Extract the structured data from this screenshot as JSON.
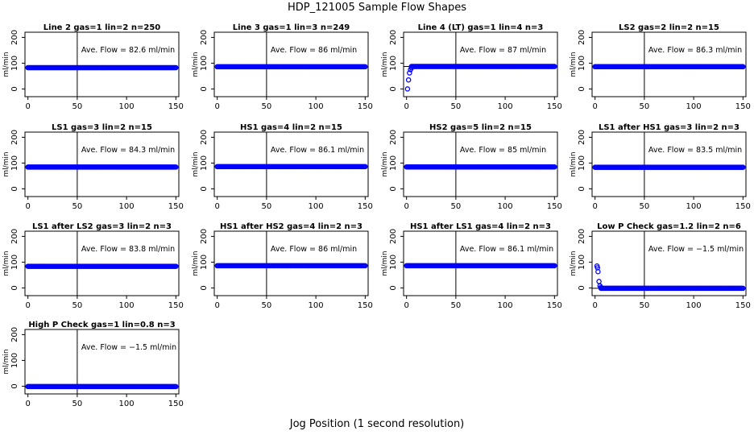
{
  "page": {
    "title": "HDP_121005  Sample Flow Shapes",
    "xlabel": "Jog Position (1 second resolution)"
  },
  "style": {
    "point_color": "#0000ff",
    "line_color": "#000000"
  },
  "chart_data": [
    {
      "type": "scatter",
      "title": "Line 2 gas=1 lin=2 n=250",
      "annotation": "Ave. Flow =  82.6  ml/min",
      "ylabel": "ml/min",
      "xlim": [
        -3,
        153
      ],
      "ylim": [
        -30,
        220
      ],
      "xticks": [
        0,
        50,
        100,
        150
      ],
      "yticks": [
        0,
        100,
        200
      ],
      "ref_hline": 82.6,
      "ref_vline": 50,
      "shape": {
        "kind": "flat",
        "level": 82.6,
        "x_start": 0,
        "x_end": 150
      }
    },
    {
      "type": "scatter",
      "title": "Line 3 gas=1 lin=3 n=249",
      "annotation": "Ave. Flow =  86  ml/min",
      "ylabel": "ml/min",
      "xlim": [
        -3,
        153
      ],
      "ylim": [
        -30,
        220
      ],
      "xticks": [
        0,
        50,
        100,
        150
      ],
      "yticks": [
        0,
        100,
        200
      ],
      "ref_hline": 86,
      "ref_vline": 50,
      "shape": {
        "kind": "flat",
        "level": 86,
        "x_start": 0,
        "x_end": 150
      }
    },
    {
      "type": "scatter",
      "title": "Line 4 (LT) gas=1 lin=4 n=3",
      "annotation": "Ave. Flow =  87  ml/min",
      "ylabel": "ml/min",
      "xlim": [
        -3,
        153
      ],
      "ylim": [
        -30,
        220
      ],
      "xticks": [
        0,
        50,
        100,
        150
      ],
      "yticks": [
        0,
        100,
        200
      ],
      "ref_hline": 87,
      "ref_vline": 50,
      "shape": {
        "kind": "flat",
        "level": 87,
        "x_start": 5,
        "x_end": 150
      },
      "extra_points": [
        [
          1,
          0
        ],
        [
          2,
          35
        ],
        [
          3,
          62
        ],
        [
          4,
          75
        ],
        [
          5,
          82
        ]
      ]
    },
    {
      "type": "scatter",
      "title": "LS2 gas=2 lin=2 n=15",
      "annotation": "Ave. Flow =  86.3  ml/min",
      "ylabel": "ml/min",
      "xlim": [
        -3,
        153
      ],
      "ylim": [
        -30,
        220
      ],
      "xticks": [
        0,
        50,
        100,
        150
      ],
      "yticks": [
        0,
        100,
        200
      ],
      "ref_hline": 86.3,
      "ref_vline": 50,
      "shape": {
        "kind": "flat",
        "level": 86.3,
        "x_start": 0,
        "x_end": 150
      }
    },
    {
      "type": "scatter",
      "title": "LS1 gas=3 lin=2 n=15",
      "annotation": "Ave. Flow =  84.3  ml/min",
      "ylabel": "ml/min",
      "xlim": [
        -3,
        153
      ],
      "ylim": [
        -30,
        220
      ],
      "xticks": [
        0,
        50,
        100,
        150
      ],
      "yticks": [
        0,
        100,
        200
      ],
      "ref_hline": 84.3,
      "ref_vline": 50,
      "shape": {
        "kind": "flat",
        "level": 84.3,
        "x_start": 0,
        "x_end": 150
      }
    },
    {
      "type": "scatter",
      "title": "HS1 gas=4 lin=2 n=15",
      "annotation": "Ave. Flow =  86.1  ml/min",
      "ylabel": "ml/min",
      "xlim": [
        -3,
        153
      ],
      "ylim": [
        -30,
        220
      ],
      "xticks": [
        0,
        50,
        100,
        150
      ],
      "yticks": [
        0,
        100,
        200
      ],
      "ref_hline": 86.1,
      "ref_vline": 50,
      "shape": {
        "kind": "flat",
        "level": 86.1,
        "x_start": 0,
        "x_end": 150
      }
    },
    {
      "type": "scatter",
      "title": "HS2 gas=5 lin=2 n=15",
      "annotation": "Ave. Flow =  85  ml/min",
      "ylabel": "ml/min",
      "xlim": [
        -3,
        153
      ],
      "ylim": [
        -30,
        220
      ],
      "xticks": [
        0,
        50,
        100,
        150
      ],
      "yticks": [
        0,
        100,
        200
      ],
      "ref_hline": 85,
      "ref_vline": 50,
      "shape": {
        "kind": "flat",
        "level": 85,
        "x_start": 0,
        "x_end": 150
      }
    },
    {
      "type": "scatter",
      "title": "LS1 after HS1 gas=3 lin=2 n=3",
      "annotation": "Ave. Flow =  83.5  ml/min",
      "ylabel": "ml/min",
      "xlim": [
        -3,
        153
      ],
      "ylim": [
        -30,
        220
      ],
      "xticks": [
        0,
        50,
        100,
        150
      ],
      "yticks": [
        0,
        100,
        200
      ],
      "ref_hline": 83.5,
      "ref_vline": 50,
      "shape": {
        "kind": "flat",
        "level": 83.5,
        "x_start": 0,
        "x_end": 150
      }
    },
    {
      "type": "scatter",
      "title": "LS1 after LS2 gas=3 lin=2 n=3",
      "annotation": "Ave. Flow =  83.8  ml/min",
      "ylabel": "ml/min",
      "xlim": [
        -3,
        153
      ],
      "ylim": [
        -30,
        220
      ],
      "xticks": [
        0,
        50,
        100,
        150
      ],
      "yticks": [
        0,
        100,
        200
      ],
      "ref_hline": 83.8,
      "ref_vline": 50,
      "shape": {
        "kind": "flat",
        "level": 83.8,
        "x_start": 0,
        "x_end": 150
      }
    },
    {
      "type": "scatter",
      "title": "HS1 after HS2 gas=4 lin=2 n=3",
      "annotation": "Ave. Flow =  86  ml/min",
      "ylabel": "ml/min",
      "xlim": [
        -3,
        153
      ],
      "ylim": [
        -30,
        220
      ],
      "xticks": [
        0,
        50,
        100,
        150
      ],
      "yticks": [
        0,
        100,
        200
      ],
      "ref_hline": 86,
      "ref_vline": 50,
      "shape": {
        "kind": "flat",
        "level": 86,
        "x_start": 0,
        "x_end": 150
      }
    },
    {
      "type": "scatter",
      "title": "HS1 after LS1 gas=4 lin=2 n=3",
      "annotation": "Ave. Flow =  86.1  ml/min",
      "ylabel": "ml/min",
      "xlim": [
        -3,
        153
      ],
      "ylim": [
        -30,
        220
      ],
      "xticks": [
        0,
        50,
        100,
        150
      ],
      "yticks": [
        0,
        100,
        200
      ],
      "ref_hline": 86.1,
      "ref_vline": 50,
      "shape": {
        "kind": "flat",
        "level": 86.1,
        "x_start": 0,
        "x_end": 150
      }
    },
    {
      "type": "scatter",
      "title": "Low P Check gas=1.2 lin=2 n=6",
      "annotation": "Ave. Flow =  −1.5  ml/min",
      "ylabel": "ml/min",
      "xlim": [
        -3,
        153
      ],
      "ylim": [
        -30,
        220
      ],
      "xticks": [
        0,
        50,
        100,
        150
      ],
      "yticks": [
        0,
        100,
        200
      ],
      "ref_hline": -1.5,
      "ref_vline": 50,
      "shape": {
        "kind": "flat",
        "level": -1.5,
        "x_start": 6,
        "x_end": 150
      },
      "extra_points": [
        [
          2,
          85
        ],
        [
          2.5,
          78
        ],
        [
          3,
          63
        ],
        [
          4,
          25
        ],
        [
          5,
          8
        ],
        [
          6,
          2
        ]
      ]
    },
    {
      "type": "scatter",
      "title": "High P Check gas=1 lin=0.8 n=3",
      "annotation": "Ave. Flow =  −1.5  ml/min",
      "ylabel": "ml/min",
      "xlim": [
        -3,
        153
      ],
      "ylim": [
        -30,
        220
      ],
      "xticks": [
        0,
        50,
        100,
        150
      ],
      "yticks": [
        0,
        100,
        200
      ],
      "ref_hline": -1.5,
      "ref_vline": 50,
      "shape": {
        "kind": "flat",
        "level": -1.5,
        "x_start": 0,
        "x_end": 150
      }
    }
  ]
}
